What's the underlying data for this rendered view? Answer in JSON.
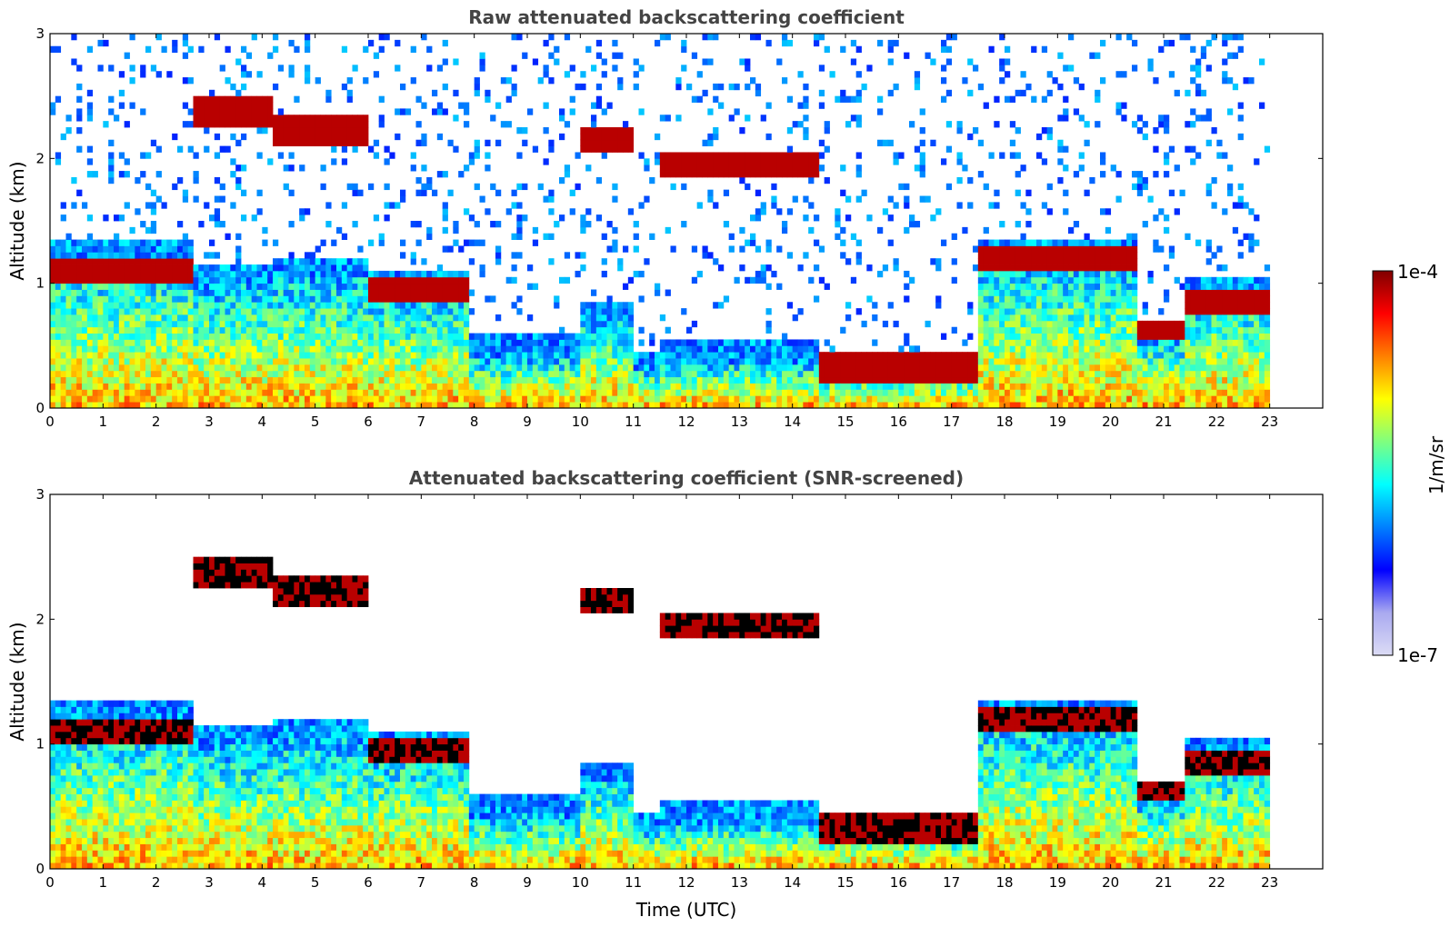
{
  "chart_data": [
    {
      "type": "heatmap",
      "title": "Raw attenuated backscattering coefficient",
      "xlabel": "",
      "ylabel": "Altitude (km)",
      "xlim": [
        0,
        24
      ],
      "ylim": [
        0,
        3
      ],
      "x_ticks": [
        "0",
        "1",
        "2",
        "3",
        "4",
        "5",
        "6",
        "7",
        "8",
        "9",
        "10",
        "11",
        "12",
        "13",
        "14",
        "15",
        "16",
        "17",
        "18",
        "19",
        "20",
        "21",
        "22",
        "23"
      ],
      "y_ticks": [
        "0",
        "1",
        "2",
        "3"
      ],
      "data_extent_hours": [
        0,
        23
      ],
      "layer_features": [
        {
          "from": 0,
          "to": 2.75,
          "cloud_base_km": 1.0,
          "boundary_layer_top_km": 1.2
        },
        {
          "from": 2.75,
          "to": 4.25,
          "cloud_base_km": 2.25,
          "boundary_layer_top_km": 1.0
        },
        {
          "from": 4.25,
          "to": 6.0,
          "cloud_base_km": 2.1,
          "boundary_layer_top_km": 1.05
        },
        {
          "from": 6.0,
          "to": 7.9,
          "cloud_base_km": 0.85,
          "boundary_layer_top_km": 0.95
        },
        {
          "from": 7.9,
          "to": 10.5,
          "cloud_base_km": null,
          "boundary_layer_top_km": 0.4
        },
        {
          "from": 10.0,
          "to": 11.0,
          "cloud_base_km": 2.05,
          "boundary_layer_top_km": 0.7
        },
        {
          "from": 11.5,
          "to": 14.5,
          "cloud_base_km": 1.85,
          "boundary_layer_top_km": 0.35
        },
        {
          "from": 14.5,
          "to": 17.5,
          "cloud_base_km": 0.2,
          "boundary_layer_top_km": 0.25
        },
        {
          "from": 17.5,
          "to": 20.5,
          "cloud_base_km": 1.1,
          "boundary_layer_top_km": 1.2
        },
        {
          "from": 20.5,
          "to": 21.4,
          "cloud_base_km": 0.5,
          "boundary_layer_top_km": 0.55
        },
        {
          "from": 21.4,
          "to": 23.0,
          "cloud_base_km": 0.75,
          "boundary_layer_top_km": 0.9
        }
      ]
    },
    {
      "type": "heatmap",
      "title": "Attenuated backscattering coefficient (SNR-screened)",
      "xlabel": "Time (UTC)",
      "ylabel": "Altitude (km)",
      "xlim": [
        0,
        24
      ],
      "ylim": [
        0,
        3
      ],
      "x_ticks": [
        "0",
        "1",
        "2",
        "3",
        "4",
        "5",
        "6",
        "7",
        "8",
        "9",
        "10",
        "11",
        "12",
        "13",
        "14",
        "15",
        "16",
        "17",
        "18",
        "19",
        "20",
        "21",
        "22",
        "23"
      ],
      "y_ticks": [
        "0",
        "1",
        "2",
        "3"
      ],
      "data_extent_hours": [
        0,
        23
      ],
      "saturated_color": "#000000"
    }
  ],
  "colorbar": {
    "label": "1/m/sr",
    "max_label": "1e-4",
    "min_label": "1e-7",
    "range": [
      1e-07,
      0.0001
    ],
    "scale": "log",
    "colormap": "jet",
    "colors": [
      "#dcdcf5",
      "#a9a9f0",
      "#0000ff",
      "#0080ff",
      "#00ffff",
      "#7fff7f",
      "#ffff00",
      "#ff8000",
      "#ff0000",
      "#800000"
    ]
  }
}
